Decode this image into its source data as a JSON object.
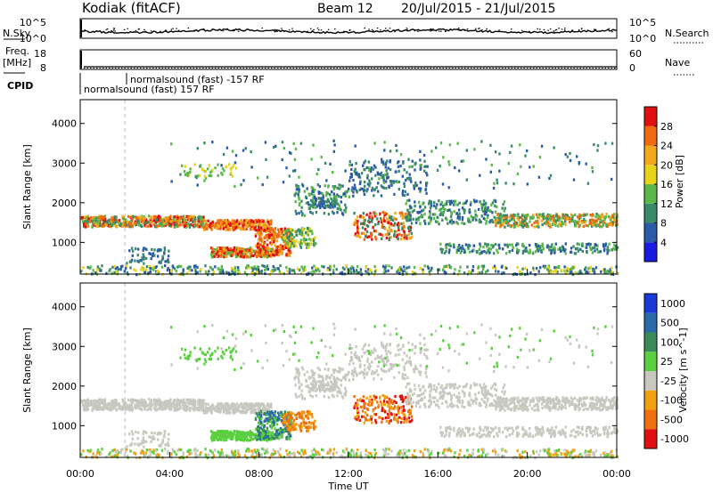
{
  "header": {
    "station": "Kodiak (fitACF)",
    "beam": "Beam 12",
    "date_range": "20/Jul/2015 - 21/Jul/2015"
  },
  "top_panels": {
    "nsky": {
      "label": "N.Sky",
      "tick_hi": "10^5",
      "tick_lo": "10^0"
    },
    "nsearch": {
      "label": "N.Search",
      "tick_hi": "10^5",
      "tick_lo": "10^0"
    },
    "freq": {
      "label_line1": "Freq.",
      "label_line2": "[MHz]",
      "tick_hi": "18",
      "tick_lo": "8"
    },
    "nave": {
      "label": "Nave",
      "tick_hi": "60",
      "tick_lo": "0"
    },
    "cpid": {
      "label": "CPID",
      "mode_upper": "normalsound (fast) -157 RF",
      "mode_lower": "normalsound (fast) 157 RF"
    }
  },
  "colors": {
    "power": [
      "#1a1ae0",
      "#2a5aa8",
      "#3a8a6a",
      "#5ab84a",
      "#e8d21a",
      "#f2a81a",
      "#f06a10",
      "#e01010"
    ],
    "velocity": [
      "#1a3ad8",
      "#2a6aa8",
      "#3a8a58",
      "#5ad040",
      "#c8c8c0",
      "#f0a010",
      "#f07010",
      "#e01010"
    ],
    "frame": "#000000"
  },
  "chart_data": [
    {
      "type": "heatmap",
      "title": "Power",
      "ylabel": "Slant Range [km]",
      "xlabel": "Time UT",
      "ylim": [
        200,
        4600
      ],
      "yticks": [
        "1000",
        "2000",
        "3000",
        "4000"
      ],
      "colorbar": {
        "label": "Power [dB]",
        "ticks": [
          "4",
          "8",
          "12",
          "16",
          "20",
          "24",
          "28"
        ]
      }
    },
    {
      "type": "heatmap",
      "title": "Velocity",
      "ylabel": "Slant Range [km]",
      "xlabel": "Time UT",
      "ylim": [
        200,
        4600
      ],
      "yticks": [
        "1000",
        "2000",
        "3000",
        "4000"
      ],
      "xticks": [
        "00:00",
        "04:00",
        "08:00",
        "12:00",
        "16:00",
        "20:00",
        "00:00"
      ],
      "colorbar": {
        "label": "Velocity [m s^-1]",
        "ticks": [
          "1000",
          "500",
          "100",
          "25",
          "-25",
          "-100",
          "-500",
          "-1000"
        ]
      }
    }
  ]
}
